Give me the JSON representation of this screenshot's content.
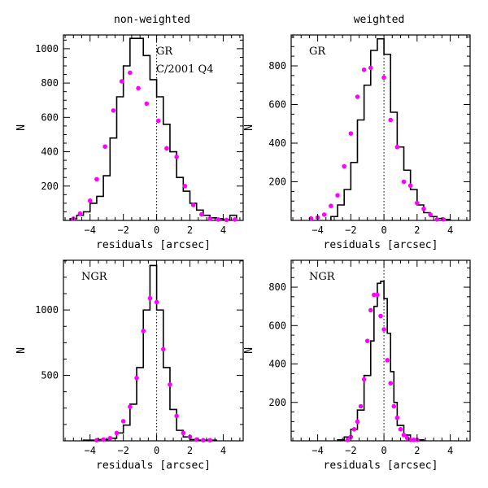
{
  "figure": {
    "column_titles": [
      "non-weighted",
      "weighted"
    ]
  },
  "chart_data": [
    {
      "type": "histogram",
      "title": "non-weighted",
      "annotations": [
        "GR",
        "C/2001 Q4"
      ],
      "xlabel": "residuals [arcsec]",
      "ylabel": "N",
      "xlim": [
        -5.6,
        5.2
      ],
      "ylim": [
        0,
        1080
      ],
      "xticks": [
        -4,
        -2,
        0,
        2,
        4
      ],
      "yticks": [
        200,
        400,
        600,
        800,
        1000
      ],
      "bin_edges": [
        -5.2,
        -4.8,
        -4.4,
        -4.0,
        -3.6,
        -3.2,
        -2.8,
        -2.4,
        -2.0,
        -1.6,
        -1.2,
        -0.8,
        -0.4,
        0.0,
        0.4,
        0.8,
        1.2,
        1.6,
        2.0,
        2.4,
        2.8,
        3.2,
        3.6,
        4.0,
        4.4,
        4.8
      ],
      "histogram_counts": [
        10,
        30,
        50,
        100,
        140,
        260,
        480,
        720,
        900,
        1060,
        1060,
        960,
        820,
        720,
        560,
        400,
        250,
        170,
        100,
        60,
        30,
        15,
        10,
        5,
        30
      ],
      "points_x": [
        -5.0,
        -4.6,
        -4.0,
        -3.6,
        -3.1,
        -2.6,
        -2.1,
        -1.6,
        -1.1,
        -0.6,
        0.1,
        0.6,
        1.2,
        1.7,
        2.2,
        2.7,
        3.2,
        3.7,
        4.2,
        4.7
      ],
      "points_y": [
        10,
        40,
        115,
        240,
        430,
        640,
        810,
        860,
        770,
        680,
        580,
        420,
        370,
        200,
        90,
        35,
        10,
        5,
        3,
        5
      ]
    },
    {
      "type": "histogram",
      "title": "weighted",
      "annotations": [
        "GR"
      ],
      "xlabel": "residuals [arcsec]",
      "ylabel": "N",
      "xlim": [
        -5.6,
        5.2
      ],
      "ylim": [
        0,
        960
      ],
      "xticks": [
        -4,
        -2,
        0,
        2,
        4
      ],
      "yticks": [
        200,
        400,
        600,
        800
      ],
      "bin_edges": [
        -3.2,
        -2.8,
        -2.4,
        -2.0,
        -1.6,
        -1.2,
        -0.8,
        -0.4,
        0.0,
        0.4,
        0.8,
        1.2,
        1.6,
        2.0,
        2.4,
        2.8,
        3.2,
        3.6,
        4.0
      ],
      "histogram_counts": [
        20,
        80,
        160,
        300,
        520,
        700,
        880,
        940,
        860,
        560,
        380,
        260,
        160,
        80,
        40,
        20,
        10,
        5
      ],
      "points_x": [
        -4.4,
        -4.0,
        -3.6,
        -3.2,
        -2.8,
        -2.4,
        -2.0,
        -1.6,
        -1.2,
        -0.8,
        0.0,
        0.4,
        0.8,
        1.2,
        1.6,
        2.0,
        2.4,
        2.8,
        3.2,
        3.6
      ],
      "points_y": [
        10,
        15,
        30,
        75,
        130,
        280,
        450,
        640,
        780,
        790,
        740,
        520,
        380,
        200,
        180,
        90,
        60,
        30,
        5,
        5
      ]
    },
    {
      "type": "histogram",
      "title": "",
      "annotations": [
        "NGR"
      ],
      "xlabel": "residuals [arcsec]",
      "ylabel": "N",
      "xlim": [
        -5.6,
        5.2
      ],
      "ylim": [
        0,
        1380
      ],
      "xticks": [
        -4,
        -2,
        0,
        2,
        4
      ],
      "yticks": [
        500,
        1000
      ],
      "bin_edges": [
        -4.4,
        -4.0,
        -3.6,
        -3.2,
        -2.8,
        -2.4,
        -2.0,
        -1.6,
        -1.2,
        -0.8,
        -0.4,
        0.0,
        0.4,
        0.8,
        1.2,
        1.6,
        2.0,
        2.4,
        2.8,
        3.2,
        3.6
      ],
      "histogram_counts": [
        5,
        5,
        10,
        10,
        20,
        60,
        120,
        280,
        560,
        1000,
        1340,
        1000,
        560,
        240,
        80,
        30,
        10,
        5,
        5,
        5
      ],
      "points_x": [
        -3.6,
        -3.2,
        -2.8,
        -2.4,
        -2.0,
        -1.6,
        -1.2,
        -0.8,
        -0.4,
        0.0,
        0.4,
        0.8,
        1.2,
        1.6,
        2.0,
        2.4,
        2.8,
        3.2
      ],
      "points_y": [
        5,
        10,
        20,
        60,
        150,
        260,
        480,
        840,
        1090,
        1060,
        700,
        430,
        190,
        60,
        30,
        10,
        5,
        5
      ]
    },
    {
      "type": "histogram",
      "title": "",
      "annotations": [
        "NGR"
      ],
      "xlabel": "residuals [arcsec]",
      "ylabel": "N",
      "xlim": [
        -5.6,
        5.2
      ],
      "ylim": [
        0,
        940
      ],
      "xticks": [
        -4,
        -2,
        0,
        2,
        4
      ],
      "yticks": [
        200,
        400,
        600,
        800
      ],
      "bin_edges": [
        -2.8,
        -2.4,
        -2.0,
        -1.6,
        -1.2,
        -0.8,
        -0.6,
        -0.4,
        -0.2,
        0.0,
        0.2,
        0.4,
        0.6,
        0.8,
        1.2,
        1.6,
        2.0,
        2.4
      ],
      "histogram_counts": [
        5,
        20,
        60,
        160,
        340,
        520,
        700,
        820,
        830,
        740,
        560,
        360,
        200,
        80,
        30,
        10,
        5
      ],
      "points_x": [
        -2.2,
        -2.0,
        -1.8,
        -1.6,
        -1.4,
        -1.2,
        -1.0,
        -0.8,
        -0.6,
        -0.4,
        -0.2,
        0.0,
        0.2,
        0.4,
        0.6,
        0.8,
        1.0,
        1.2,
        1.4,
        1.6,
        1.8,
        2.0
      ],
      "points_y": [
        5,
        20,
        60,
        100,
        180,
        320,
        520,
        680,
        760,
        760,
        650,
        580,
        420,
        300,
        180,
        120,
        60,
        30,
        15,
        5,
        5,
        5
      ]
    }
  ]
}
